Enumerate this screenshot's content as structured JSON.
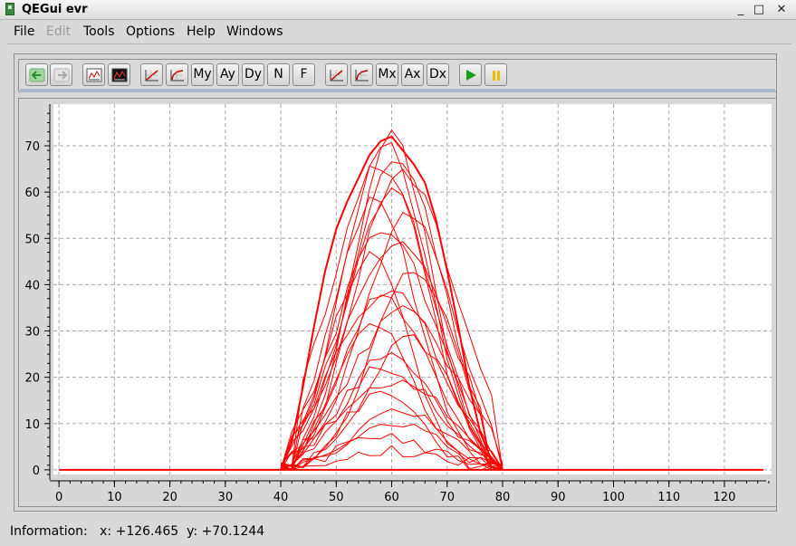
{
  "window": {
    "title": "QEGui evr",
    "controls": {
      "minimize": "_",
      "maximize": "□",
      "close": "✕"
    }
  },
  "menu": [
    {
      "label": "File",
      "enabled": true
    },
    {
      "label": "Edit",
      "enabled": false
    },
    {
      "label": "Tools",
      "enabled": true
    },
    {
      "label": "Options",
      "enabled": true
    },
    {
      "label": "Help",
      "enabled": true
    },
    {
      "label": "Windows",
      "enabled": true
    }
  ],
  "toolbar": {
    "back_icon": "arrow-left-icon",
    "forward_icon": "arrow-right-icon",
    "plot_icon": "plot-icon",
    "black_plot_icon": "dark-plot-icon",
    "y_linear_icon": "linear-scale-icon",
    "y_log_icon": "log-scale-icon",
    "my_label": "My",
    "ay_label": "Ay",
    "dy_label": "Dy",
    "n_label": "N",
    "f_label": "F",
    "x_linear_icon": "linear-scale-icon",
    "x_log_icon": "log-scale-icon",
    "mx_label": "Mx",
    "ax_label": "Ax",
    "dx_label": "Dx",
    "play_icon": "play-icon",
    "pause_icon": "pause-icon"
  },
  "colors": {
    "trace": "#ff0000",
    "grid": "#a0a0a0",
    "play": "#1a9f1a",
    "pause": "#e8c000"
  },
  "status": {
    "label": "Information:",
    "x_label": "x:",
    "x_value": "+126.465",
    "y_label": "y:",
    "y_value": "+70.1244"
  },
  "chart_data": {
    "type": "line",
    "title": "",
    "xlabel": "",
    "ylabel": "",
    "xlim": [
      -1,
      128.5
    ],
    "ylim": [
      -1,
      79
    ],
    "x_ticks": [
      0,
      10,
      20,
      30,
      40,
      50,
      60,
      70,
      80,
      90,
      100,
      110,
      120
    ],
    "y_ticks": [
      0,
      10,
      20,
      30,
      40,
      50,
      60,
      70
    ],
    "grid": true,
    "series_color": "#ff0000",
    "baseline": {
      "x": [
        0,
        127
      ],
      "y": [
        0,
        0
      ]
    },
    "envelope": {
      "x": [
        40,
        42,
        44,
        46,
        48,
        50,
        52,
        54,
        56,
        58,
        60,
        62,
        64,
        66,
        68,
        70,
        72,
        74,
        76,
        78,
        80
      ],
      "y": [
        0,
        6,
        18,
        31,
        43,
        52,
        58,
        63,
        68,
        71,
        72,
        69,
        66,
        62,
        54,
        43,
        31,
        18,
        8,
        2,
        0
      ]
    },
    "traces": {
      "x": [
        40,
        42,
        44,
        46,
        48,
        50,
        52,
        54,
        56,
        58,
        60,
        62,
        64,
        66,
        68,
        70,
        72,
        74,
        76,
        78,
        80
      ],
      "peaks": [
        72,
        70,
        68,
        66,
        64,
        61,
        58,
        55,
        52,
        49,
        46,
        43,
        40,
        37,
        34,
        31,
        28,
        25,
        22,
        19,
        16,
        13,
        10,
        7,
        4
      ],
      "centers": [
        60,
        59,
        61,
        58,
        62,
        60,
        57,
        63,
        59,
        61,
        56,
        64,
        60,
        58,
        62,
        57,
        63,
        60,
        59,
        61,
        58,
        62,
        60,
        59,
        61
      ]
    }
  }
}
